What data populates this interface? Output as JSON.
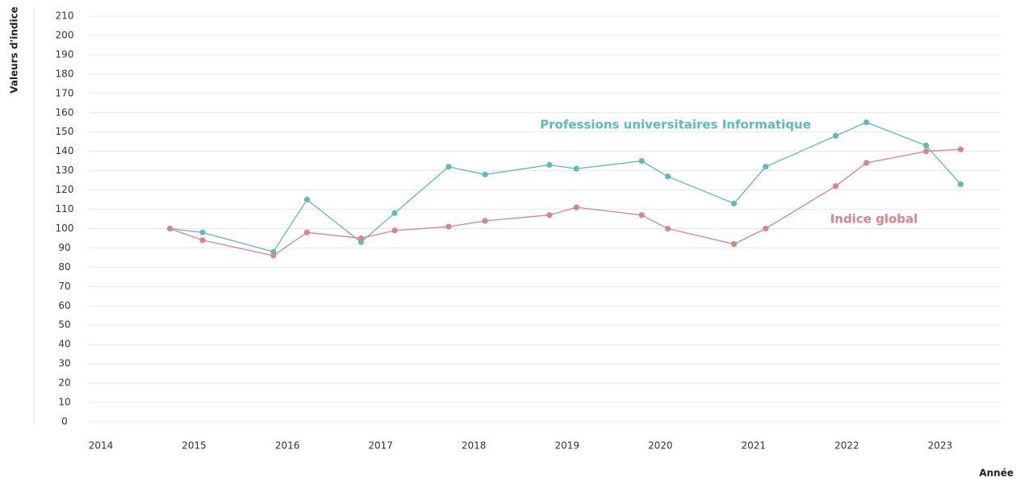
{
  "chart_data": {
    "type": "line",
    "y_label": "Valeurs d'indice",
    "x_label": "Année",
    "xlim": [
      2013.87,
      2023.65
    ],
    "xticks": [
      2014,
      2015,
      2016,
      2017,
      2018,
      2019,
      2020,
      2021,
      2022,
      2023
    ],
    "ylim": [
      0,
      210
    ],
    "yticks": [
      0,
      10,
      20,
      30,
      40,
      50,
      60,
      70,
      80,
      90,
      100,
      110,
      120,
      130,
      140,
      150,
      160,
      170,
      180,
      190,
      200,
      210
    ],
    "grid": true,
    "x": [
      2014.74,
      2015.09,
      2015.85,
      2016.21,
      2016.79,
      2017.15,
      2017.73,
      2018.12,
      2018.81,
      2019.1,
      2019.8,
      2020.08,
      2020.79,
      2021.13,
      2021.88,
      2022.21,
      2022.85,
      2023.22
    ],
    "series": [
      {
        "name": "Professions universitaires Informatique",
        "color": "#5bbcb8",
        "values": [
          100,
          98,
          88,
          115,
          93,
          108,
          132,
          128,
          133,
          131,
          135,
          127,
          113,
          132,
          148,
          155,
          143,
          123
        ]
      },
      {
        "name": "Indice global",
        "color": "#d9838a",
        "values": [
          100,
          94,
          86,
          98,
          95,
          99,
          101,
          104,
          107,
          111,
          107,
          100,
          92,
          100,
          122,
          134,
          140,
          141
        ]
      }
    ]
  }
}
